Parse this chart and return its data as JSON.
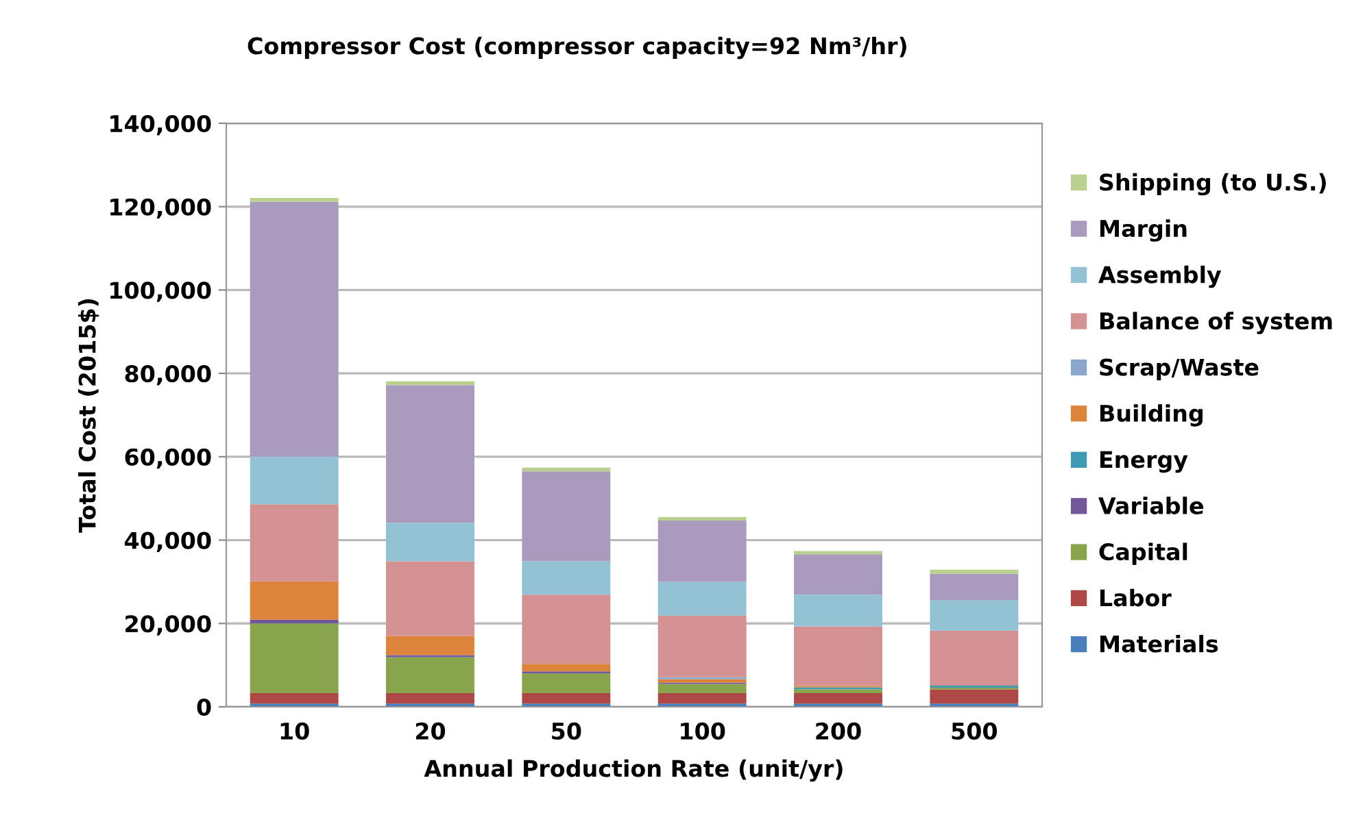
{
  "chart_data": {
    "type": "bar",
    "stacked": true,
    "title": "Compressor Cost (compressor capacity=92 Nm³/hr)",
    "xlabel": "Annual Production Rate (unit/yr)",
    "ylabel": "Total Cost (2015$)",
    "categories": [
      "10",
      "20",
      "50",
      "100",
      "200",
      "500"
    ],
    "series": [
      {
        "name": "Materials",
        "color": "#4a7ebb",
        "values": [
          800,
          800,
          800,
          800,
          800,
          800
        ]
      },
      {
        "name": "Labor",
        "color": "#ad4846",
        "values": [
          2500,
          2500,
          2500,
          2500,
          2500,
          3400
        ]
      },
      {
        "name": "Capital",
        "color": "#88a44c",
        "values": [
          16700,
          8600,
          4700,
          2200,
          900,
          400
        ]
      },
      {
        "name": "Variable",
        "color": "#70589a",
        "values": [
          900,
          500,
          500,
          300,
          0,
          0
        ]
      },
      {
        "name": "Energy",
        "color": "#3f9ab3",
        "values": [
          0,
          0,
          0,
          0,
          500,
          500
        ]
      },
      {
        "name": "Building",
        "color": "#dc843c",
        "values": [
          9200,
          4600,
          1800,
          800,
          300,
          0
        ]
      },
      {
        "name": "Scrap/Waste",
        "color": "#8aa6cc",
        "values": [
          0,
          0,
          0,
          500,
          0,
          0
        ]
      },
      {
        "name": "Balance of system",
        "color": "#d39191",
        "values": [
          18500,
          17900,
          16600,
          14800,
          14300,
          13200
        ]
      },
      {
        "name": "Assembly",
        "color": "#92c2d3",
        "values": [
          11400,
          9200,
          8000,
          8100,
          7600,
          7300
        ]
      },
      {
        "name": "Margin",
        "color": "#a99bbd",
        "values": [
          61200,
          33100,
          21600,
          14700,
          9700,
          6300
        ]
      },
      {
        "name": "Shipping (to U.S.)",
        "color": "#b9d08f",
        "values": [
          900,
          900,
          900,
          800,
          800,
          1000
        ]
      }
    ],
    "ylim": [
      0,
      140000
    ],
    "yticks": [
      {
        "value": 0,
        "label": "0"
      },
      {
        "value": 20000,
        "label": "20,000"
      },
      {
        "value": 40000,
        "label": "40,000"
      },
      {
        "value": 60000,
        "label": "60,000"
      },
      {
        "value": 80000,
        "label": "80,000"
      },
      {
        "value": 100000,
        "label": "100,000"
      },
      {
        "value": 120000,
        "label": "120,000"
      },
      {
        "value": 140000,
        "label": "140,000"
      }
    ],
    "grid": "y",
    "legend": "right"
  }
}
